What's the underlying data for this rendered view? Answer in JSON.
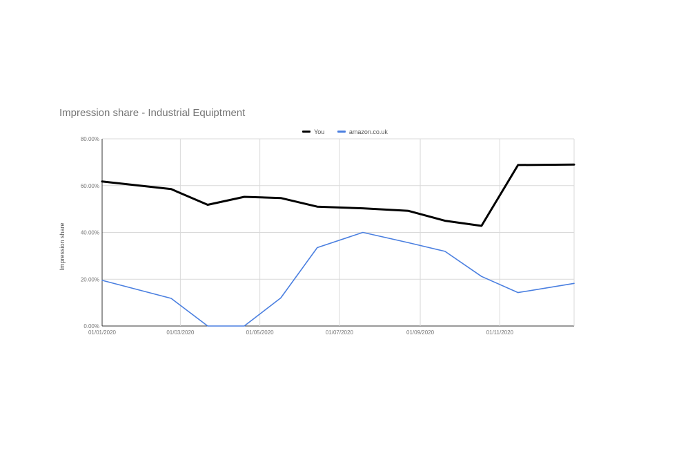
{
  "chart_data": {
    "type": "line",
    "title": "Impression share - Industrial Equiptment",
    "ylabel": "Impression share",
    "xlabel": "",
    "legend_position": "top",
    "grid": true,
    "ylim": [
      0,
      80
    ],
    "y_ticks": [
      "0.00%",
      "20.00%",
      "40.00%",
      "60.00%",
      "80.00%"
    ],
    "y_tick_values": [
      0,
      20,
      40,
      60,
      80
    ],
    "xlim": [
      "2020-01-01",
      "2020-12-28"
    ],
    "x_ticks": [
      "01/01/2020",
      "01/03/2020",
      "01/05/2020",
      "01/07/2020",
      "01/09/2020",
      "01/11/2020"
    ],
    "x_tick_dates": [
      "2020-01-01",
      "2020-03-01",
      "2020-05-01",
      "2020-07-01",
      "2020-09-01",
      "2020-11-01"
    ],
    "x": [
      "2020-01-01",
      "2020-02-23",
      "2020-03-22",
      "2020-04-19",
      "2020-05-17",
      "2020-06-14",
      "2020-07-19",
      "2020-08-23",
      "2020-09-20",
      "2020-10-18",
      "2020-11-15",
      "2020-12-28"
    ],
    "series": [
      {
        "name": "You",
        "color": "#000000",
        "values": [
          61.8,
          58.5,
          51.8,
          55.2,
          54.7,
          51.0,
          50.3,
          49.2,
          45.0,
          42.8,
          68.8,
          69.0
        ]
      },
      {
        "name": "amazon.co.uk",
        "color": "#4a7fe0",
        "values": [
          19.5,
          11.8,
          0.0,
          0.0,
          12.0,
          33.5,
          40.0,
          35.6,
          31.9,
          21.2,
          14.3,
          18.2
        ]
      }
    ]
  }
}
